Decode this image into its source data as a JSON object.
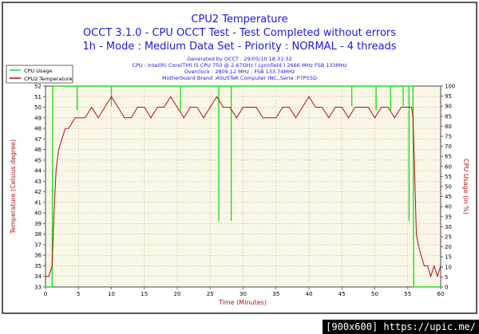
{
  "chart_data": {
    "type": "line",
    "title_lines": [
      "CPU2 Temperature",
      "OCCT 3.1.0 - CPU OCCT Test - Test Completed without errors",
      "1h - Mode : Medium Data Set - Priority : NORMAL - 4 threads"
    ],
    "info_lines": [
      "Generated by OCCT : 29/05/10 18:31:32",
      "CPU : Intel(R) Core(TM) i5 CPU 750 @ 2.67GHz ( Lynnfield ) 2666 MHz FSB 133MHz",
      "Overclock : 2809.12 MHz ; FSB 133.74MHz",
      "Motherboard Brand :ASUSTeK Computer INC.,Serie :P7P55D"
    ],
    "xlabel": "Time (Minutes)",
    "ylabel_left": "Temperature (Celsius degree)",
    "ylabel_right": "CPU Usage (in %)",
    "xlim": [
      0,
      60
    ],
    "ylim_left": [
      33,
      52
    ],
    "ylim_right": [
      0,
      100
    ],
    "x_ticks": [
      "0",
      "5",
      "10",
      "15",
      "20",
      "25",
      "30",
      "35",
      "40",
      "45",
      "50",
      "55",
      "60"
    ],
    "y_ticks_left": [
      "33",
      "34",
      "35",
      "36",
      "37",
      "38",
      "39",
      "40",
      "41",
      "42",
      "43",
      "44",
      "45",
      "46",
      "47",
      "48",
      "49",
      "50",
      "51",
      "52"
    ],
    "y_ticks_right": [
      "0",
      "5",
      "10",
      "15",
      "20",
      "25",
      "30",
      "35",
      "40",
      "45",
      "50",
      "55",
      "60",
      "65",
      "70",
      "75",
      "80",
      "85",
      "90",
      "95",
      "100"
    ],
    "legend_position": "top-left",
    "grid": true,
    "series": [
      {
        "name": "CPU Usage",
        "axis": "right",
        "color": "#22dd22",
        "x": [
          0,
          0.8,
          1.0,
          1.1,
          1.2,
          55.8,
          55.9,
          56.0,
          60
        ],
        "values": [
          0,
          0,
          0,
          100,
          100,
          100,
          0,
          0,
          0
        ],
        "dips": [
          {
            "x": 4.8,
            "value": 88
          },
          {
            "x": 10.0,
            "value": 90
          },
          {
            "x": 20.5,
            "value": 88
          },
          {
            "x": 26.3,
            "value": 33
          },
          {
            "x": 28.2,
            "value": 33
          },
          {
            "x": 46.5,
            "value": 90
          },
          {
            "x": 50.2,
            "value": 88
          },
          {
            "x": 52.4,
            "value": 88
          },
          {
            "x": 54.3,
            "value": 90
          },
          {
            "x": 55.2,
            "value": 33
          }
        ]
      },
      {
        "name": "CPU2 Temperature",
        "axis": "left",
        "color": "#b01010",
        "x": [
          0,
          0.5,
          1.0,
          1.3,
          1.6,
          2.0,
          2.5,
          3.0,
          3.5,
          4.0,
          4.5,
          5.0,
          6.0,
          7.0,
          8.0,
          9.0,
          10.0,
          11.0,
          12.0,
          13.0,
          14.0,
          15.0,
          16.0,
          17.0,
          18.0,
          19.0,
          20.0,
          21.0,
          22.0,
          23.0,
          24.0,
          25.0,
          26.0,
          27.0,
          28.0,
          29.0,
          30.0,
          31.0,
          32.0,
          33.0,
          34.0,
          35.0,
          36.0,
          37.0,
          38.0,
          39.0,
          40.0,
          41.0,
          42.0,
          43.0,
          44.0,
          45.0,
          46.0,
          47.0,
          48.0,
          49.0,
          50.0,
          51.0,
          52.0,
          53.0,
          54.0,
          55.0,
          55.6,
          55.8,
          56.0,
          56.3,
          56.6,
          57.0,
          57.5,
          58.0,
          58.5,
          59.0,
          59.5,
          60.0
        ],
        "values": [
          34,
          34,
          35,
          40,
          44,
          46,
          47,
          48,
          48,
          48.5,
          49,
          49,
          49,
          50,
          49,
          50,
          51,
          50,
          49,
          49,
          50,
          50,
          49,
          50,
          50,
          51,
          50,
          49,
          50,
          50,
          49,
          50,
          51,
          50,
          50,
          49,
          50,
          50,
          50,
          49,
          49,
          49,
          50,
          50,
          49,
          50,
          51,
          50,
          50,
          49,
          50,
          50,
          49,
          50,
          50,
          50,
          49,
          50,
          50,
          49,
          50,
          50,
          50,
          49,
          45,
          38,
          37,
          36,
          35,
          35,
          34,
          35,
          34,
          35
        ]
      }
    ]
  },
  "footer": {
    "text": "[900x600] https://upic.me/"
  }
}
